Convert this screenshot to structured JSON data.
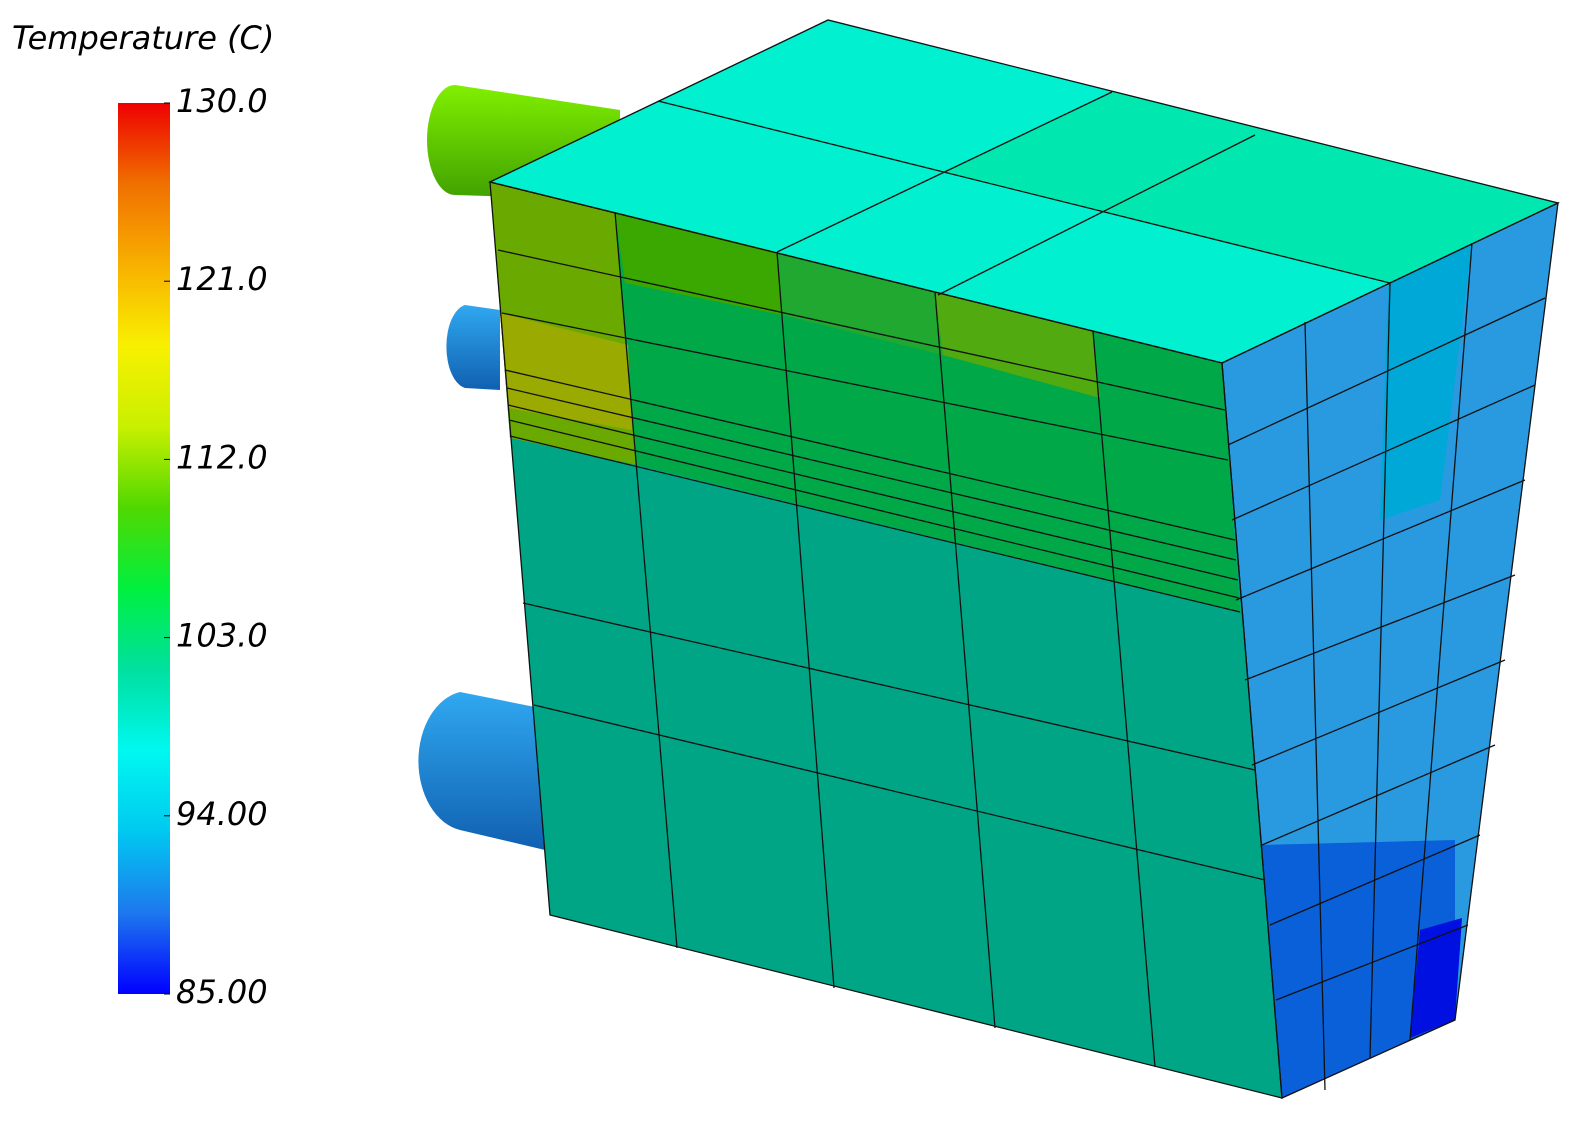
{
  "legend": {
    "title": "Temperature (C)",
    "range": [
      85,
      130
    ],
    "ticks": [
      {
        "value": 130,
        "label": "130.0"
      },
      {
        "value": 121,
        "label": "121.0"
      },
      {
        "value": 112,
        "label": "112.0"
      },
      {
        "value": 103,
        "label": "103.0"
      },
      {
        "value": 94,
        "label": "94.00"
      },
      {
        "value": 85,
        "label": "85.00"
      }
    ],
    "colors": [
      "#0000ff",
      "#1e78ee",
      "#00c8f0",
      "#00f8f0",
      "#00e0a0",
      "#00f040",
      "#50d800",
      "#c8f000",
      "#f8f000",
      "#f8b000",
      "#f07000",
      "#ee0000"
    ]
  }
}
